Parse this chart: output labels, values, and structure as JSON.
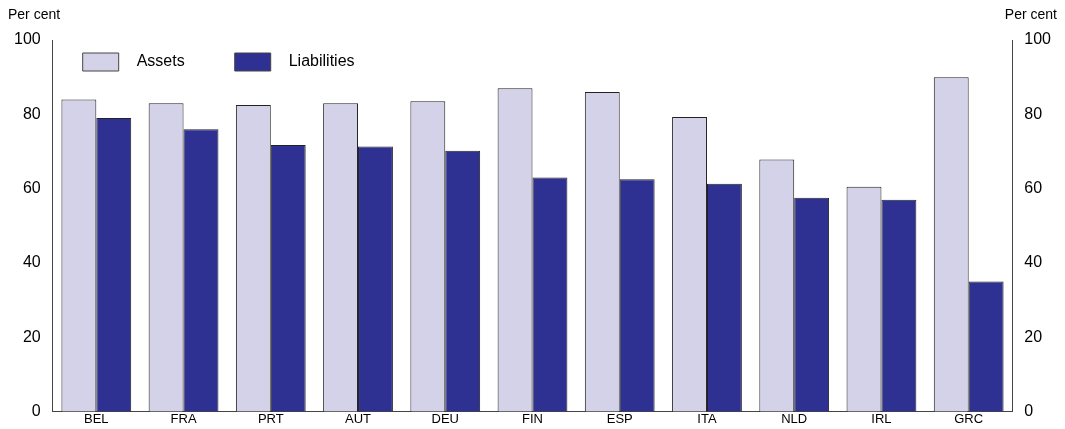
{
  "chart_data": {
    "type": "bar",
    "ylabel": "Per cent",
    "y2label": "Per cent",
    "categories": [
      "BEL",
      "FRA",
      "PRT",
      "AUT",
      "DEU",
      "FIN",
      "ESP",
      "ITA",
      "NLD",
      "IRL",
      "GRC"
    ],
    "series": [
      {
        "name": "Assets",
        "color": "#d4d2e8",
        "values": [
          84,
          83,
          82.5,
          83,
          83.5,
          87,
          86,
          79.3,
          67.8,
          60.5,
          90
        ]
      },
      {
        "name": "Liabilities",
        "color": "#2e3192",
        "values": [
          79,
          76,
          71.7,
          71.3,
          70.2,
          63,
          62.5,
          61.3,
          57.5,
          57,
          35
        ]
      }
    ],
    "ylim": [
      0,
      100
    ],
    "yticks": [
      0,
      20,
      40,
      60,
      80,
      100
    ],
    "y2lim": [
      0,
      100
    ],
    "y2ticks": [
      0,
      20,
      40,
      60,
      80,
      100
    ],
    "grid": false,
    "legend": "top left"
  }
}
